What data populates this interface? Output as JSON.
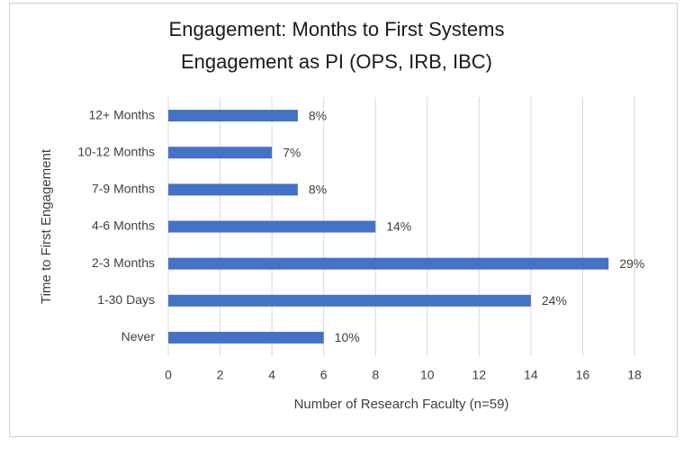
{
  "chart_data": {
    "type": "bar",
    "orientation": "horizontal",
    "title": [
      "Engagement: Months to First Systems",
      "Engagement as PI (OPS, IRB, IBC)"
    ],
    "x_label": "Number of Research Faculty (n=59)",
    "y_label": "Time to First Engagement",
    "categories": [
      "12+ Months",
      "10-12 Months",
      "7-9 Months",
      "4-6 Months",
      "2-3 Months",
      "1-30 Days",
      "Never"
    ],
    "values": [
      5,
      4,
      5,
      8,
      17,
      14,
      6
    ],
    "value_labels": [
      "8%",
      "7%",
      "8%",
      "14%",
      "29%",
      "24%",
      "10%"
    ],
    "color": "#4472c4",
    "xlim": [
      0,
      18
    ],
    "xticks": [
      0,
      2,
      4,
      6,
      8,
      10,
      12,
      14,
      16,
      18
    ],
    "grid": true
  }
}
